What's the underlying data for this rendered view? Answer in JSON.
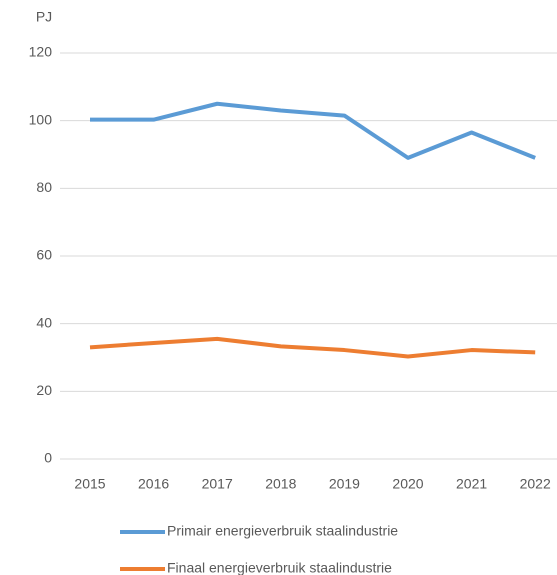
{
  "chart_data": {
    "type": "line",
    "y_axis_label": "PJ",
    "categories": [
      "2015",
      "2016",
      "2017",
      "2018",
      "2019",
      "2020",
      "2021",
      "2022"
    ],
    "series": [
      {
        "name": "Primair energieverbruik staalindustrie",
        "color": "#5b9bd5",
        "values": [
          100.3,
          100.3,
          105,
          103,
          101.5,
          89,
          96.5,
          89
        ]
      },
      {
        "name": "Finaal energieverbruik staalindustrie",
        "color": "#ed7d31",
        "values": [
          33,
          34.3,
          35.5,
          33.3,
          32.2,
          30.3,
          32.2,
          31.5
        ]
      }
    ],
    "ylim": [
      0,
      120
    ],
    "yticks": [
      0,
      20,
      40,
      60,
      80,
      100,
      120
    ],
    "grid": true,
    "legend": "bottom"
  }
}
